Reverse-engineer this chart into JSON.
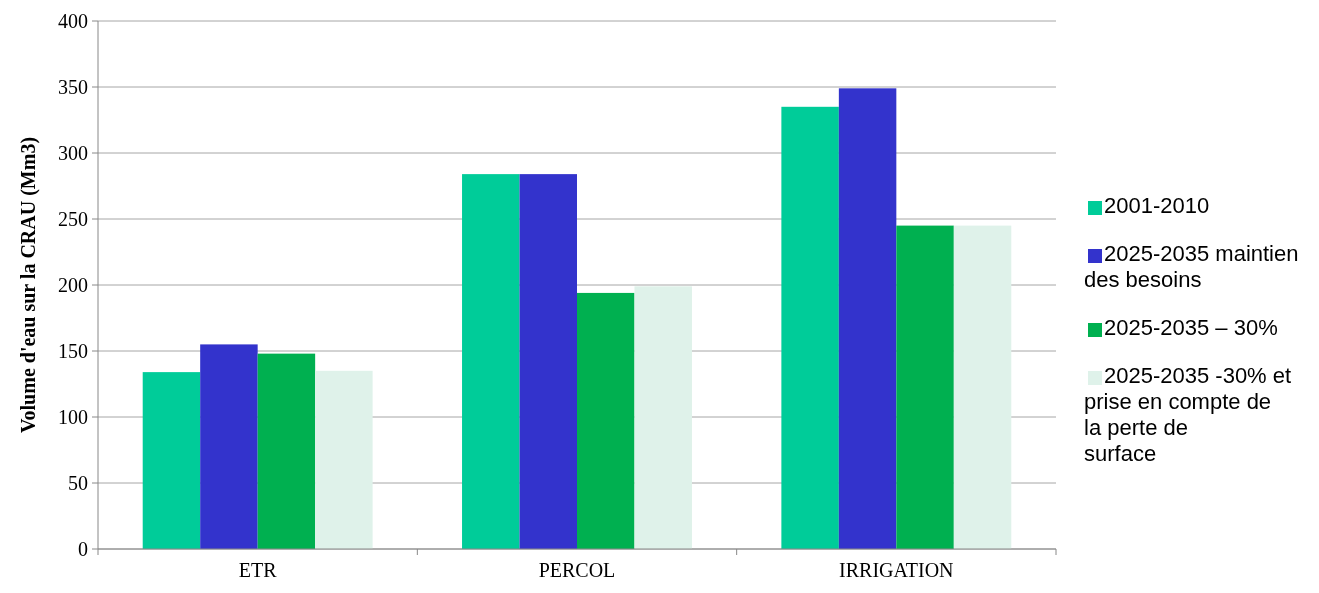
{
  "chart_data": {
    "type": "bar",
    "ylabel": "Volume d'eau sur la CRAU (Mm3)",
    "categories": [
      "ETR",
      "PERCOL",
      "IRRIGATION"
    ],
    "series": [
      {
        "name": "2001-2010",
        "color": "#00cc99",
        "values": [
          134,
          284,
          335
        ]
      },
      {
        "name": "2025-2035 maintien des besoins",
        "color": "#3333cc",
        "values": [
          155,
          284,
          349
        ]
      },
      {
        "name": "2025-2035 – 30%",
        "color": "#00b050",
        "values": [
          148,
          194,
          245
        ]
      },
      {
        "name": "2025-2035 -30% et prise en compte de la perte de surface",
        "color": "#dff2ea",
        "values": [
          135,
          199,
          245
        ]
      }
    ],
    "ylim": [
      0,
      400
    ],
    "yticks": [
      0,
      50,
      100,
      150,
      200,
      250,
      300,
      350,
      400
    ],
    "grid": "y",
    "legend": "right"
  }
}
